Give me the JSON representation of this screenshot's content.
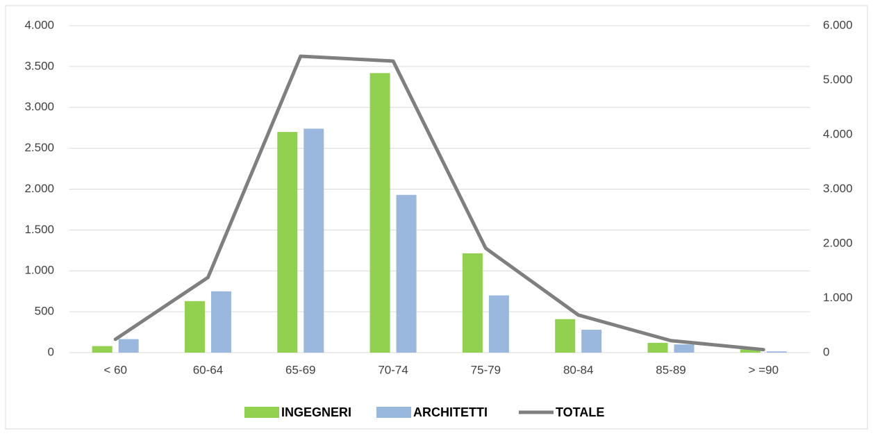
{
  "chart_data": {
    "type": "bar",
    "categories": [
      "< 60",
      "60-64",
      "65-69",
      "70-74",
      "75-79",
      "80-84",
      "85-89",
      "> =90"
    ],
    "series": [
      {
        "name": "INGEGNERI",
        "color": "#92d050",
        "type": "bar",
        "values": [
          80,
          630,
          2700,
          3420,
          1215,
          410,
          120,
          40
        ]
      },
      {
        "name": "ARCHITETTI",
        "color": "#9ab7de",
        "type": "bar",
        "values": [
          165,
          750,
          2740,
          1930,
          700,
          280,
          100,
          15
        ]
      },
      {
        "name": "TOTALE",
        "color": "#7f7f7f",
        "type": "line",
        "axis": "y2",
        "values": [
          245,
          1380,
          5440,
          5350,
          1915,
          690,
          220,
          55
        ]
      }
    ],
    "ylim": [
      0,
      4000
    ],
    "yticks": [
      0,
      500,
      {
        "value": 1000,
        "label": "1.000"
      },
      {
        "value": 1500,
        "label": "1.500"
      },
      {
        "value": 2000,
        "label": "2.000"
      },
      {
        "value": 2500,
        "label": "2.500"
      },
      {
        "value": 3000,
        "label": "3.000"
      },
      {
        "value": 3500,
        "label": "3.500"
      },
      {
        "value": 4000,
        "label": "4.000"
      }
    ],
    "y2lim": [
      0,
      6000
    ],
    "y2ticks": [
      0,
      {
        "value": 1000,
        "label": "1.000"
      },
      {
        "value": 2000,
        "label": "2.000"
      },
      {
        "value": 3000,
        "label": "3.000"
      },
      {
        "value": 4000,
        "label": "4.000"
      },
      {
        "value": 5000,
        "label": "5.000"
      },
      {
        "value": 6000,
        "label": "6.000"
      }
    ],
    "grid": true,
    "legend": "bottom"
  }
}
